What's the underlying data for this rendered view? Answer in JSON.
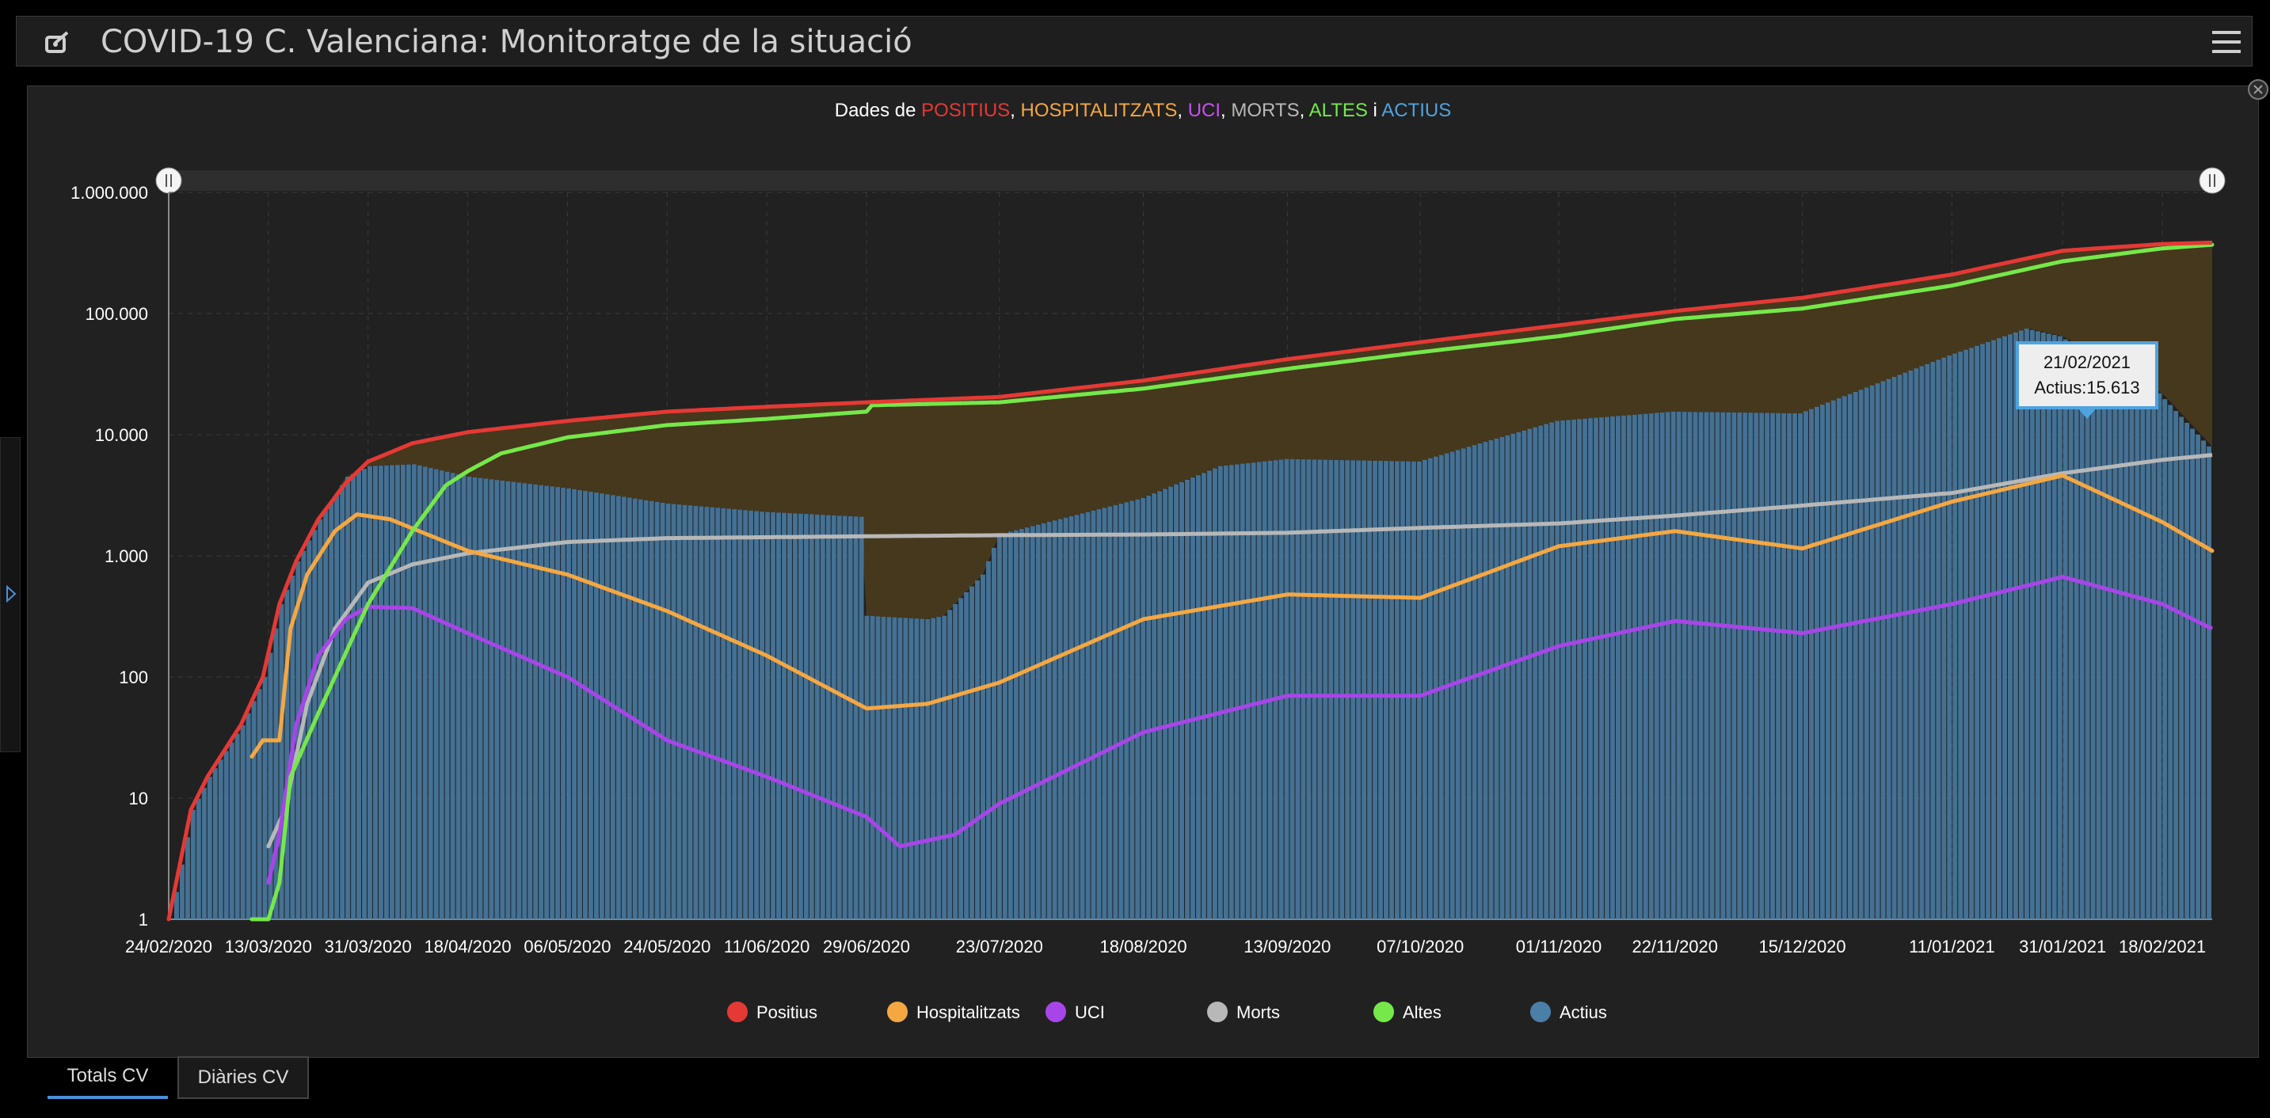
{
  "header": {
    "title": "COVID-19 C. Valenciana: Monitoratge de la situació",
    "logo_icon": "dashboard-logo-icon",
    "menu_icon": "hamburger-menu-icon"
  },
  "tabs": [
    {
      "label": "Totals CV",
      "active": true
    },
    {
      "label": "Diàries CV",
      "active": false
    }
  ],
  "tooltip": {
    "date": "21/02/2021",
    "text": "Actius:15.613"
  },
  "chart_data": {
    "type": "line",
    "title_prefix": "Dades de ",
    "title_parts": [
      {
        "text": "POSITIUS",
        "color": "#e53935"
      },
      {
        "text": ", ",
        "color": "#ffffff"
      },
      {
        "text": "HOSPITALITZATS",
        "color": "#f5a742"
      },
      {
        "text": ", ",
        "color": "#ffffff"
      },
      {
        "text": "UCI",
        "color": "#c850f0"
      },
      {
        "text": ", ",
        "color": "#ffffff"
      },
      {
        "text": "MORTS",
        "color": "#b8b8b8"
      },
      {
        "text": ", ",
        "color": "#ffffff"
      },
      {
        "text": "ALTES",
        "color": "#76e84a"
      },
      {
        "text": " i ",
        "color": "#ffffff"
      },
      {
        "text": "ACTIUS",
        "color": "#4fa3e0"
      }
    ],
    "y_scale": "log",
    "ylim": [
      1,
      1000000
    ],
    "y_ticks": [
      {
        "value": 1,
        "label": "1"
      },
      {
        "value": 10,
        "label": "10"
      },
      {
        "value": 100,
        "label": "100"
      },
      {
        "value": 1000,
        "label": "1.000"
      },
      {
        "value": 10000,
        "label": "10.000"
      },
      {
        "value": 100000,
        "label": "100.000"
      },
      {
        "value": 1000000,
        "label": "1.000.000"
      }
    ],
    "x_start": "24/02/2020",
    "x_end": "27/02/2021",
    "x_ticks": [
      "24/02/2020",
      "13/03/2020",
      "31/03/2020",
      "18/04/2020",
      "06/05/2020",
      "24/05/2020",
      "11/06/2020",
      "29/06/2020",
      "23/07/2020",
      "18/08/2020",
      "13/09/2020",
      "07/10/2020",
      "01/11/2020",
      "22/11/2020",
      "15/12/2020",
      "11/01/2021",
      "31/01/2021",
      "18/02/2021"
    ],
    "grid": true,
    "legend_position": "bottom",
    "series": [
      {
        "name": "Positius",
        "color": "#e53935",
        "kind": "line",
        "points": [
          [
            "24/02/2020",
            1
          ],
          [
            "28/02/2020",
            8
          ],
          [
            "02/03/2020",
            15
          ],
          [
            "08/03/2020",
            40
          ],
          [
            "12/03/2020",
            100
          ],
          [
            "15/03/2020",
            400
          ],
          [
            "18/03/2020",
            900
          ],
          [
            "22/03/2020",
            2000
          ],
          [
            "27/03/2020",
            4000
          ],
          [
            "31/03/2020",
            6000
          ],
          [
            "08/04/2020",
            8500
          ],
          [
            "18/04/2020",
            10500
          ],
          [
            "06/05/2020",
            13000
          ],
          [
            "24/05/2020",
            15500
          ],
          [
            "11/06/2020",
            17000
          ],
          [
            "29/06/2020",
            18500
          ],
          [
            "23/07/2020",
            20500
          ],
          [
            "18/08/2020",
            28000
          ],
          [
            "13/09/2020",
            42000
          ],
          [
            "07/10/2020",
            58000
          ],
          [
            "01/11/2020",
            80000
          ],
          [
            "22/11/2020",
            105000
          ],
          [
            "15/12/2020",
            135000
          ],
          [
            "11/01/2021",
            210000
          ],
          [
            "31/01/2021",
            330000
          ],
          [
            "18/02/2021",
            375000
          ],
          [
            "27/02/2021",
            385000
          ]
        ]
      },
      {
        "name": "Hospitalitzats",
        "color": "#f5a742",
        "kind": "line",
        "points": [
          [
            "10/03/2020",
            22
          ],
          [
            "12/03/2020",
            30
          ],
          [
            "15/03/2020",
            30
          ],
          [
            "17/03/2020",
            250
          ],
          [
            "20/03/2020",
            700
          ],
          [
            "25/03/2020",
            1600
          ],
          [
            "29/03/2020",
            2200
          ],
          [
            "04/04/2020",
            2000
          ],
          [
            "18/04/2020",
            1100
          ],
          [
            "06/05/2020",
            700
          ],
          [
            "24/05/2020",
            350
          ],
          [
            "11/06/2020",
            150
          ],
          [
            "29/06/2020",
            55
          ],
          [
            "10/07/2020",
            60
          ],
          [
            "23/07/2020",
            90
          ],
          [
            "18/08/2020",
            300
          ],
          [
            "13/09/2020",
            480
          ],
          [
            "07/10/2020",
            450
          ],
          [
            "01/11/2020",
            1200
          ],
          [
            "22/11/2020",
            1600
          ],
          [
            "15/12/2020",
            1150
          ],
          [
            "11/01/2021",
            2800
          ],
          [
            "31/01/2021",
            4600
          ],
          [
            "18/02/2021",
            1900
          ],
          [
            "27/02/2021",
            1100
          ]
        ]
      },
      {
        "name": "UCI",
        "color": "#a845e8",
        "kind": "line",
        "points": [
          [
            "13/03/2020",
            2
          ],
          [
            "15/03/2020",
            5
          ],
          [
            "18/03/2020",
            40
          ],
          [
            "22/03/2020",
            150
          ],
          [
            "27/03/2020",
            300
          ],
          [
            "31/03/2020",
            380
          ],
          [
            "08/04/2020",
            370
          ],
          [
            "18/04/2020",
            230
          ],
          [
            "06/05/2020",
            100
          ],
          [
            "24/05/2020",
            30
          ],
          [
            "11/06/2020",
            15
          ],
          [
            "29/06/2020",
            7
          ],
          [
            "05/07/2020",
            4
          ],
          [
            "15/07/2020",
            5
          ],
          [
            "23/07/2020",
            9
          ],
          [
            "18/08/2020",
            35
          ],
          [
            "13/09/2020",
            70
          ],
          [
            "07/10/2020",
            70
          ],
          [
            "01/11/2020",
            180
          ],
          [
            "22/11/2020",
            290
          ],
          [
            "15/12/2020",
            230
          ],
          [
            "11/01/2021",
            400
          ],
          [
            "31/01/2021",
            670
          ],
          [
            "18/02/2021",
            400
          ],
          [
            "27/02/2021",
            250
          ]
        ]
      },
      {
        "name": "Morts",
        "color": "#b8b8b8",
        "kind": "line",
        "points": [
          [
            "13/03/2020",
            4
          ],
          [
            "16/03/2020",
            8
          ],
          [
            "20/03/2020",
            60
          ],
          [
            "25/03/2020",
            250
          ],
          [
            "31/03/2020",
            600
          ],
          [
            "08/04/2020",
            850
          ],
          [
            "18/04/2020",
            1050
          ],
          [
            "06/05/2020",
            1300
          ],
          [
            "24/05/2020",
            1400
          ],
          [
            "29/06/2020",
            1450
          ],
          [
            "23/07/2020",
            1480
          ],
          [
            "18/08/2020",
            1500
          ],
          [
            "13/09/2020",
            1550
          ],
          [
            "07/10/2020",
            1700
          ],
          [
            "01/11/2020",
            1850
          ],
          [
            "22/11/2020",
            2150
          ],
          [
            "15/12/2020",
            2600
          ],
          [
            "11/01/2021",
            3300
          ],
          [
            "31/01/2021",
            4800
          ],
          [
            "18/02/2021",
            6200
          ],
          [
            "27/02/2021",
            6800
          ]
        ]
      },
      {
        "name": "Altes",
        "color": "#76e84a",
        "kind": "line",
        "points": [
          [
            "10/03/2020",
            1
          ],
          [
            "13/03/2020",
            1
          ],
          [
            "15/03/2020",
            2
          ],
          [
            "17/03/2020",
            15
          ],
          [
            "22/03/2020",
            50
          ],
          [
            "28/03/2020",
            200
          ],
          [
            "31/03/2020",
            400
          ],
          [
            "08/04/2020",
            1600
          ],
          [
            "14/04/2020",
            3800
          ],
          [
            "18/04/2020",
            5000
          ],
          [
            "24/04/2020",
            7000
          ],
          [
            "06/05/2020",
            9500
          ],
          [
            "24/05/2020",
            12000
          ],
          [
            "11/06/2020",
            13500
          ],
          [
            "29/06/2020",
            15500
          ],
          [
            "30/06/2020",
            17500
          ],
          [
            "23/07/2020",
            18500
          ],
          [
            "18/08/2020",
            24000
          ],
          [
            "13/09/2020",
            35000
          ],
          [
            "07/10/2020",
            48000
          ],
          [
            "01/11/2020",
            65000
          ],
          [
            "22/11/2020",
            90000
          ],
          [
            "15/12/2020",
            110000
          ],
          [
            "11/01/2021",
            170000
          ],
          [
            "31/01/2021",
            270000
          ],
          [
            "18/02/2021",
            345000
          ],
          [
            "27/02/2021",
            370000
          ]
        ]
      },
      {
        "name": "Actius",
        "color": "#4a7fa8",
        "kind": "bar",
        "points": [
          [
            "24/02/2020",
            1
          ],
          [
            "28/02/2020",
            8
          ],
          [
            "02/03/2020",
            15
          ],
          [
            "08/03/2020",
            40
          ],
          [
            "12/03/2020",
            100
          ],
          [
            "15/03/2020",
            400
          ],
          [
            "18/03/2020",
            900
          ],
          [
            "22/03/2020",
            2000
          ],
          [
            "27/03/2020",
            4500
          ],
          [
            "31/03/2020",
            5500
          ],
          [
            "08/04/2020",
            5700
          ],
          [
            "18/04/2020",
            4500
          ],
          [
            "06/05/2020",
            3600
          ],
          [
            "24/05/2020",
            2700
          ],
          [
            "11/06/2020",
            2300
          ],
          [
            "28/06/2020",
            2100
          ],
          [
            "29/06/2020",
            320
          ],
          [
            "10/07/2020",
            300
          ],
          [
            "13/07/2020",
            320
          ],
          [
            "20/07/2020",
            700
          ],
          [
            "23/07/2020",
            1500
          ],
          [
            "18/08/2020",
            3000
          ],
          [
            "01/09/2020",
            5500
          ],
          [
            "13/09/2020",
            6300
          ],
          [
            "07/10/2020",
            6000
          ],
          [
            "20/10/2020",
            9000
          ],
          [
            "01/11/2020",
            13000
          ],
          [
            "22/11/2020",
            15500
          ],
          [
            "15/12/2020",
            15000
          ],
          [
            "11/01/2021",
            45000
          ],
          [
            "25/01/2021",
            75000
          ],
          [
            "31/01/2021",
            65000
          ],
          [
            "18/02/2021",
            22000
          ],
          [
            "27/02/2021",
            8000
          ]
        ]
      }
    ],
    "filled_band": {
      "between": [
        "Positius",
        "Actius"
      ],
      "color": "#4b3c1c"
    }
  }
}
